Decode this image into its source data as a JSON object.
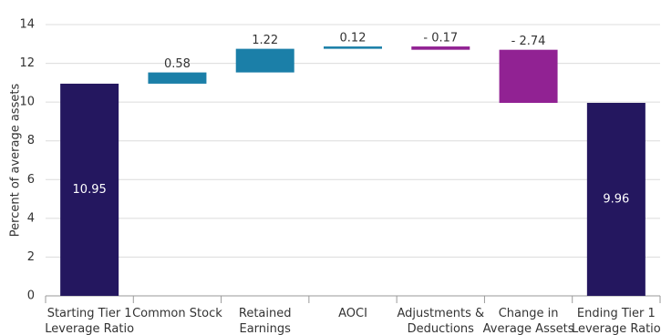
{
  "chart_data": {
    "type": "waterfall",
    "y_label": "Percent of average assets",
    "categories": [
      [
        "Starting Tier 1",
        "Leverage Ratio"
      ],
      [
        "Common Stock"
      ],
      [
        "Retained",
        "Earnings"
      ],
      [
        "AOCI"
      ],
      [
        "Adjustments &",
        "Deductions"
      ],
      [
        "Change in",
        "Average Assets"
      ],
      [
        "Ending Tier 1",
        "Leverage Ratio"
      ]
    ],
    "values": [
      10.95,
      0.58,
      1.22,
      0.12,
      -0.17,
      -2.74,
      9.96
    ],
    "value_labels": [
      "10.95",
      "0.58",
      "1.22",
      "0.12",
      "- 0.17",
      "- 2.74",
      "9.96"
    ],
    "colors": [
      "#24175f",
      "#1b7fa8",
      "#1b7fa8",
      "#1b7fa8",
      "#912293",
      "#912293",
      "#24175f"
    ],
    "ylim": [
      0,
      14
    ],
    "yticks": [
      0,
      2,
      4,
      6,
      8,
      10,
      12,
      14
    ],
    "grid": true
  }
}
